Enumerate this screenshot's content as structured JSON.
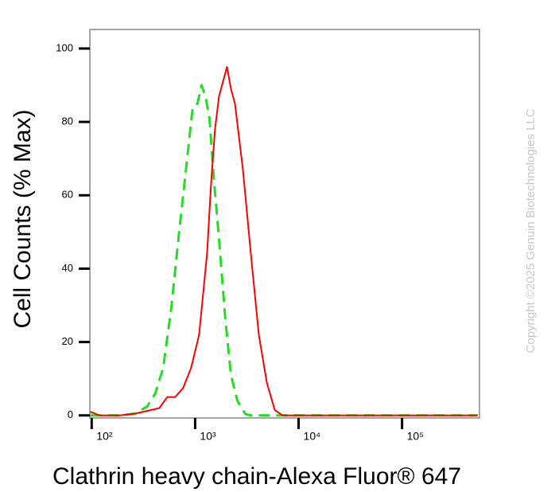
{
  "chart_data": {
    "type": "line",
    "x_label": "Clathrin heavy chain-Alexa Fluor® 647",
    "y_label": "Cell Counts (% Max)",
    "annotation": "Copyright ©2025 Genuin Biotechnologies LLC",
    "xscale": "log",
    "xlim": [
      96,
      560000
    ],
    "ylim": [
      -0.7,
      105.2
    ],
    "xticks": [
      {
        "value": 100,
        "label": "10²"
      },
      {
        "value": 1000,
        "label": "10³"
      },
      {
        "value": 10000,
        "label": "10⁴"
      },
      {
        "value": 100000,
        "label": "10⁵"
      }
    ],
    "yticks": [
      0,
      20,
      40,
      60,
      80,
      100
    ],
    "series": [
      {
        "color": "#ff0000",
        "dash": false,
        "x": [
          97,
          119,
          186,
          265,
          451,
          538,
          642,
          767,
          915,
          1093,
          1304,
          1425,
          1557,
          1702,
          1859,
          2031,
          2219,
          2425,
          2895,
          3455,
          4124,
          4922,
          5875,
          7013,
          538000
        ],
        "values": [
          1,
          0,
          0,
          0.5,
          2,
          5,
          5,
          7.5,
          13,
          22,
          44,
          63,
          78,
          87,
          91,
          95,
          89,
          85,
          67,
          44,
          22,
          9,
          1.5,
          0,
          0
        ]
      },
      {
        "color": "#22dd22",
        "dash": true,
        "x": [
          97,
          186,
          265,
          345,
          412,
          492,
          587,
          701,
          837,
          948,
          1055,
          1152,
          1259,
          1375,
          1502,
          1702,
          1961,
          2219,
          2556,
          3053,
          3455,
          538000
        ],
        "values": [
          0,
          0,
          0.5,
          2.5,
          6,
          13,
          29,
          50,
          70,
          84,
          85,
          90,
          87,
          81,
          66,
          48,
          26,
          11,
          4,
          0.4,
          0,
          0
        ]
      }
    ]
  }
}
